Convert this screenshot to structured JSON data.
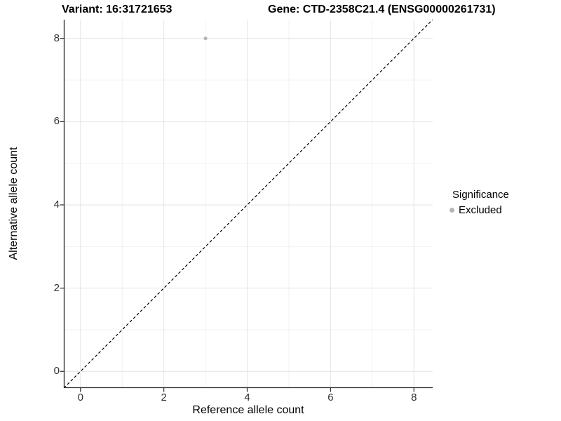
{
  "titles": {
    "variant": "Variant: 16:31721653",
    "gene": "Gene: CTD-2358C21.4 (ENSG00000261731)"
  },
  "chart_data": {
    "type": "scatter",
    "title": "Variant: 16:31721653 — Gene: CTD-2358C21.4 (ENSG00000261731)",
    "xlabel": "Reference allele count",
    "ylabel": "Alternative allele count",
    "xlim": [
      -0.4,
      8.45
    ],
    "ylim": [
      -0.4,
      8.45
    ],
    "x_ticks": [
      0,
      2,
      4,
      6,
      8
    ],
    "y_ticks": [
      0,
      2,
      4,
      6,
      8
    ],
    "grid": "major and minor gridlines on, white panel background",
    "reference_line": {
      "kind": "identity y=x",
      "style": "dashed",
      "color": "#000000"
    },
    "series": [
      {
        "name": "Excluded",
        "color": "#b5b5b5",
        "points": [
          {
            "x": 3,
            "y": 8
          }
        ]
      }
    ],
    "legend": {
      "title": "Significance",
      "position": "right",
      "entries": [
        {
          "label": "Excluded",
          "color": "#b5b5b5"
        }
      ]
    },
    "colors": {
      "point": "#b5b5b5",
      "grid_major": "#e4e4e4",
      "grid_minor": "#f0f0f0",
      "axis_line": "#2b2b2b",
      "tick_label": "#303030",
      "identity_line": "#000000"
    }
  }
}
